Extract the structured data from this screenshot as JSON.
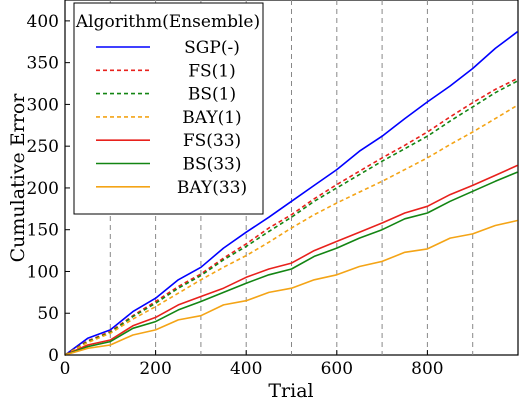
{
  "chart_data": {
    "type": "line",
    "xlabel": "Trial",
    "ylabel": "Cumulative Error",
    "xlim": [
      0,
      1000
    ],
    "ylim": [
      0,
      425
    ],
    "x_ticks": [
      0,
      200,
      400,
      600,
      800
    ],
    "y_ticks": [
      0,
      50,
      100,
      150,
      200,
      250,
      300,
      350,
      400
    ],
    "vlines": [
      100,
      200,
      300,
      400,
      500,
      600,
      700,
      800,
      900
    ],
    "legend": {
      "title": "Algorithm(Ensemble)",
      "placement": "top-left"
    },
    "x": [
      0,
      50,
      100,
      150,
      200,
      250,
      300,
      350,
      400,
      450,
      500,
      550,
      600,
      650,
      700,
      750,
      800,
      850,
      900,
      950,
      999
    ],
    "series": [
      {
        "name": "SGP(-)",
        "color": "#0000ff",
        "dash": "solid",
        "values": [
          0,
          20,
          30,
          52,
          68,
          90,
          105,
          128,
          147,
          165,
          184,
          203,
          222,
          244,
          262,
          283,
          303,
          322,
          343,
          367,
          387
        ]
      },
      {
        "name": "FS(1)",
        "color": "#e8211c",
        "dash": "dashed",
        "values": [
          0,
          17,
          28,
          47,
          64,
          82,
          97,
          116,
          133,
          152,
          168,
          187,
          204,
          220,
          236,
          251,
          267,
          285,
          302,
          318,
          331
        ]
      },
      {
        "name": "BS(1)",
        "color": "#138513",
        "dash": "dashed",
        "values": [
          0,
          16,
          27,
          46,
          62,
          80,
          95,
          114,
          130,
          148,
          165,
          184,
          200,
          216,
          232,
          247,
          262,
          280,
          297,
          314,
          328
        ]
      },
      {
        "name": "BAY(1)",
        "color": "#f4a416",
        "dash": "dashed",
        "values": [
          0,
          15,
          26,
          43,
          58,
          74,
          90,
          105,
          119,
          135,
          152,
          168,
          182,
          195,
          208,
          222,
          236,
          252,
          267,
          283,
          299
        ]
      },
      {
        "name": "FS(33)",
        "color": "#e8211c",
        "dash": "solid",
        "values": [
          0,
          12,
          18,
          35,
          45,
          60,
          70,
          80,
          93,
          103,
          110,
          125,
          136,
          147,
          158,
          170,
          178,
          192,
          203,
          215,
          227
        ]
      },
      {
        "name": "BS(33)",
        "color": "#138513",
        "dash": "solid",
        "values": [
          0,
          10,
          16,
          32,
          40,
          54,
          64,
          75,
          86,
          96,
          103,
          118,
          128,
          140,
          150,
          163,
          170,
          184,
          196,
          208,
          219
        ]
      },
      {
        "name": "BAY(33)",
        "color": "#f4a416",
        "dash": "solid",
        "values": [
          0,
          8,
          12,
          24,
          30,
          42,
          47,
          60,
          65,
          75,
          80,
          90,
          96,
          106,
          112,
          123,
          127,
          140,
          145,
          155,
          161
        ]
      }
    ]
  }
}
